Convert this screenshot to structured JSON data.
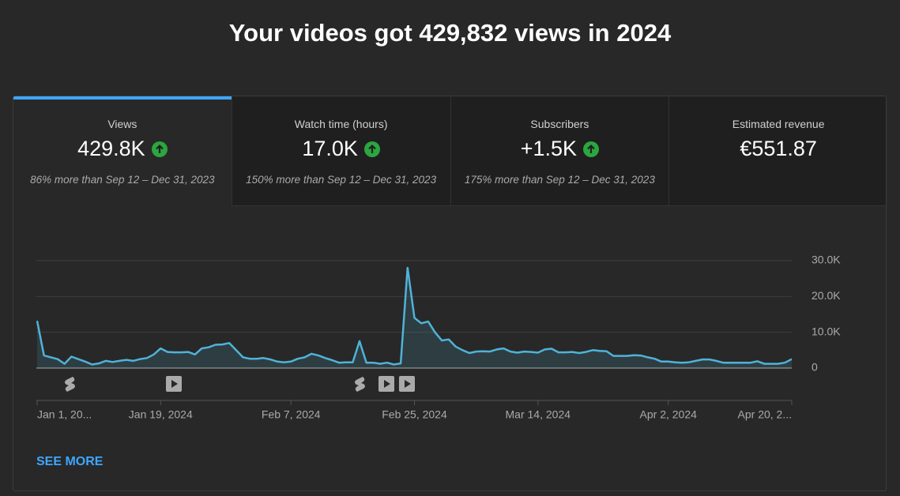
{
  "header": {
    "title": "Your videos got 429,832 views in 2024"
  },
  "tabs": [
    {
      "label": "Views",
      "value": "429.8K",
      "comparison": "86% more than Sep 12 – Dec 31, 2023"
    },
    {
      "label": "Watch time (hours)",
      "value": "17.0K",
      "comparison": "150% more than Sep 12 – Dec 31, 2023"
    },
    {
      "label": "Subscribers",
      "value": "+1.5K",
      "comparison": "175% more than Sep 12 – Dec 31, 2023"
    },
    {
      "label": "Estimated revenue",
      "value": "€551.87"
    }
  ],
  "chart_data": {
    "type": "line",
    "color": "#4fb3d9",
    "grid": true,
    "values": [
      13200,
      3500,
      3000,
      2500,
      1200,
      3200,
      2500,
      1800,
      1000,
      1300,
      2000,
      1700,
      2000,
      2300,
      2000,
      2500,
      2800,
      3800,
      5500,
      4500,
      4400,
      4400,
      4500,
      3800,
      5500,
      5800,
      6500,
      6600,
      7000,
      5000,
      3000,
      2600,
      2600,
      2800,
      2400,
      1800,
      1600,
      1800,
      2600,
      3000,
      4000,
      3500,
      2800,
      2200,
      1500,
      1600,
      1600,
      7500,
      1500,
      1500,
      1200,
      1500,
      1000,
      1300,
      28000,
      14000,
      12500,
      13000,
      10000,
      7700,
      8000,
      6000,
      5000,
      4200,
      4600,
      4700,
      4600,
      5200,
      5500,
      4600,
      4300,
      4600,
      4500,
      4300,
      5200,
      5400,
      4400,
      4400,
      4500,
      4200,
      4500,
      5000,
      4800,
      4700,
      3400,
      3400,
      3400,
      3600,
      3500,
      3000,
      2600,
      1800,
      1800,
      1600,
      1500,
      1600,
      2000,
      2400,
      2400,
      2000,
      1500,
      1500,
      1500,
      1500,
      1500,
      1900,
      1200,
      1200,
      1200,
      1500,
      2500
    ],
    "xlim": [
      0,
      110
    ],
    "xticks": [
      {
        "value": 0,
        "label": "Jan 1, 20..."
      },
      {
        "value": 18,
        "label": "Jan 19, 2024"
      },
      {
        "value": 37,
        "label": "Feb 7, 2024"
      },
      {
        "value": 55,
        "label": "Feb 25, 2024"
      },
      {
        "value": 73,
        "label": "Mar 14, 2024"
      },
      {
        "value": 92,
        "label": "Apr 2, 2024"
      },
      {
        "value": 110,
        "label": "Apr 20, 2..."
      }
    ],
    "ylim": [
      0,
      30000
    ],
    "yticks": [
      0,
      {
        "value": 10000,
        "label": "10.0K"
      },
      {
        "value": 20000,
        "label": "20.0K"
      },
      {
        "value": 30000,
        "label": "30.0K"
      }
    ]
  },
  "see_more": "SEE MORE"
}
